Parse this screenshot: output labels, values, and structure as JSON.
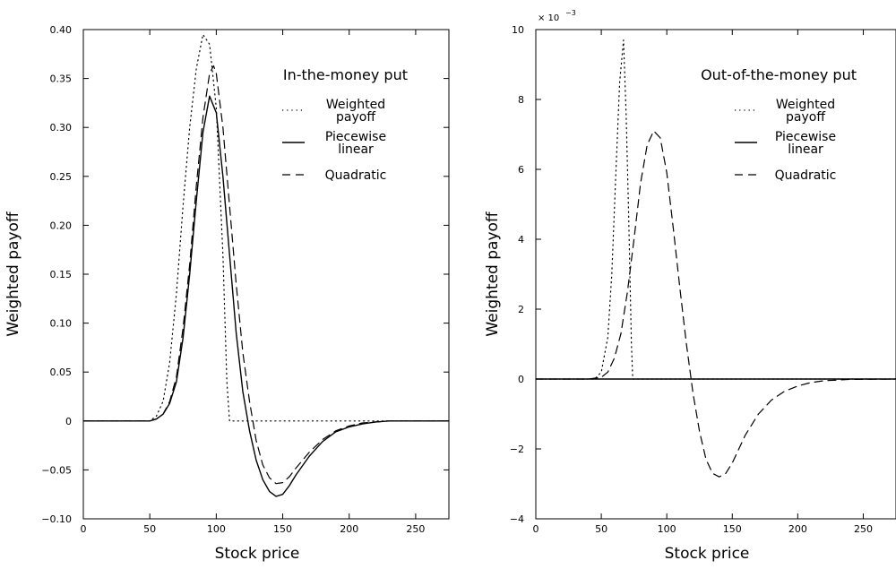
{
  "chart_data": [
    {
      "type": "line",
      "title": "In-the-money put",
      "xlabel": "Stock price",
      "ylabel": "Weighted payoff",
      "y_multiplier_label": "",
      "xlim": [
        0,
        275
      ],
      "ylim": [
        -0.1,
        0.4
      ],
      "xticks": [
        0,
        50,
        100,
        150,
        200,
        250
      ],
      "xtick_labels": [
        "0",
        "50",
        "100",
        "150",
        "200",
        "250"
      ],
      "yticks": [
        -0.1,
        -0.05,
        0,
        0.05,
        0.1,
        0.15,
        0.2,
        0.25,
        0.3,
        0.35,
        0.4
      ],
      "ytick_labels": [
        "−0.10",
        "−0.05",
        "0",
        "0.05",
        "0.10",
        "0.15",
        "0.20",
        "0.25",
        "0.30",
        "0.35",
        "0.40"
      ],
      "grid": false,
      "legend_position": "top-right",
      "series": [
        {
          "name": "Weighted payoff",
          "style": "dotted",
          "x": [
            0,
            50,
            55,
            60,
            65,
            70,
            75,
            80,
            85,
            90,
            95,
            100,
            105,
            108,
            110,
            115,
            150,
            200,
            275
          ],
          "y": [
            0,
            0,
            0.005,
            0.02,
            0.06,
            0.13,
            0.22,
            0.3,
            0.36,
            0.395,
            0.385,
            0.32,
            0.17,
            0.04,
            0,
            0,
            0,
            0,
            0
          ]
        },
        {
          "name": "Piecewise linear",
          "style": "solid",
          "x": [
            0,
            50,
            55,
            60,
            65,
            70,
            75,
            80,
            85,
            90,
            95,
            100,
            105,
            110,
            115,
            120,
            125,
            130,
            135,
            140,
            145,
            150,
            155,
            160,
            170,
            180,
            190,
            200,
            210,
            220,
            230,
            240,
            250,
            260,
            275
          ],
          "y": [
            0,
            0,
            0.002,
            0.007,
            0.018,
            0.04,
            0.085,
            0.15,
            0.225,
            0.295,
            0.332,
            0.315,
            0.25,
            0.17,
            0.09,
            0.03,
            -0.01,
            -0.04,
            -0.06,
            -0.072,
            -0.077,
            -0.075,
            -0.066,
            -0.055,
            -0.036,
            -0.021,
            -0.011,
            -0.006,
            -0.003,
            -0.001,
            0,
            0,
            0,
            0,
            0
          ]
        },
        {
          "name": "Quadratic",
          "style": "dashed",
          "x": [
            0,
            50,
            55,
            60,
            65,
            70,
            75,
            80,
            85,
            90,
            95,
            98,
            100,
            105,
            110,
            115,
            120,
            125,
            130,
            135,
            140,
            145,
            150,
            155,
            160,
            170,
            180,
            190,
            200,
            210,
            220,
            230,
            240,
            250,
            260,
            275
          ],
          "y": [
            0,
            0,
            0.002,
            0.007,
            0.02,
            0.045,
            0.095,
            0.16,
            0.24,
            0.31,
            0.355,
            0.363,
            0.355,
            0.3,
            0.22,
            0.14,
            0.07,
            0.02,
            -0.02,
            -0.045,
            -0.058,
            -0.064,
            -0.063,
            -0.057,
            -0.048,
            -0.032,
            -0.019,
            -0.01,
            -0.005,
            -0.002,
            -0.001,
            0,
            0,
            0,
            0,
            0
          ]
        }
      ]
    },
    {
      "type": "line",
      "title": "Out-of-the-money put",
      "xlabel": "Stock price",
      "ylabel": "Weighted payoff",
      "y_multiplier_label": "× 10",
      "y_multiplier_exponent": "−3",
      "xlim": [
        0,
        275
      ],
      "ylim": [
        -4,
        10
      ],
      "xticks": [
        0,
        50,
        100,
        150,
        200,
        250
      ],
      "xtick_labels": [
        "0",
        "50",
        "100",
        "150",
        "200",
        "250"
      ],
      "yticks": [
        -4,
        -2,
        0,
        2,
        4,
        6,
        8,
        10
      ],
      "ytick_labels": [
        "−4",
        "−2",
        "0",
        "2",
        "4",
        "6",
        "8",
        "10"
      ],
      "grid": false,
      "legend_position": "top-right",
      "series": [
        {
          "name": "Weighted payoff",
          "style": "dotted",
          "x": [
            0,
            45,
            50,
            55,
            58,
            61,
            64,
            67,
            69,
            71,
            73,
            74,
            100,
            275
          ],
          "y": [
            0,
            0,
            0.2,
            1.2,
            3.0,
            5.8,
            8.5,
            9.7,
            7.5,
            4.5,
            1.0,
            0,
            0,
            0
          ]
        },
        {
          "name": "Piecewise linear",
          "style": "solid",
          "x": [
            0,
            275
          ],
          "y": [
            0,
            0
          ]
        },
        {
          "name": "Quadratic",
          "style": "dashed",
          "x": [
            0,
            40,
            50,
            55,
            60,
            65,
            70,
            75,
            80,
            85,
            90,
            95,
            100,
            105,
            110,
            115,
            120,
            125,
            130,
            135,
            140,
            145,
            150,
            155,
            160,
            170,
            180,
            190,
            200,
            210,
            220,
            240,
            275
          ],
          "y": [
            0,
            0,
            0.05,
            0.2,
            0.6,
            1.3,
            2.5,
            4.0,
            5.6,
            6.7,
            7.1,
            6.9,
            5.9,
            4.3,
            2.6,
            1.0,
            -0.4,
            -1.5,
            -2.3,
            -2.7,
            -2.8,
            -2.7,
            -2.4,
            -2.0,
            -1.6,
            -1.0,
            -0.6,
            -0.35,
            -0.2,
            -0.1,
            -0.05,
            -0.01,
            0
          ]
        }
      ]
    }
  ]
}
